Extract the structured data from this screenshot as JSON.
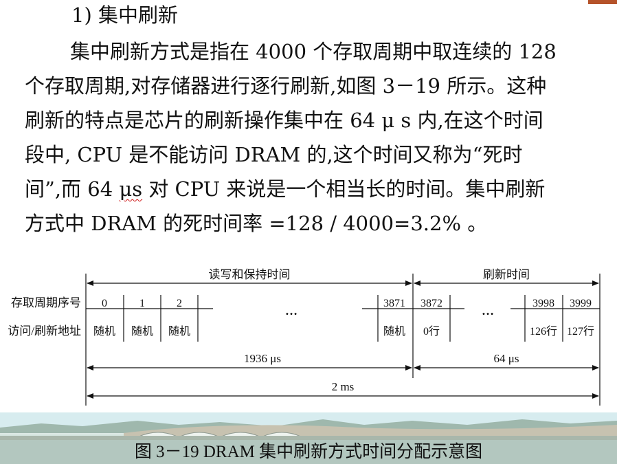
{
  "heading": "1) 集中刷新",
  "paragraph": {
    "l1": "集中刷新方式是指在 4000 个存取周期中取连续的 128",
    "l2": "个存取周期,对存储器进行逐行刷新,如图 3－19 所示。这种",
    "l3": "刷新的特点是芯片的刷新操作集中在 64 μ s 内,在这个时间",
    "l4": "段中, CPU 是不能访问 DRAM 的,这个时间又称为“死时",
    "l5_pre": "间”,而 64 ",
    "l5_us": "μs",
    "l5_post": " 对 CPU 来说是一个相当长的时间。集中刷新",
    "l6": "方式中 DRAM 的死时间率 =128 / 4000=3.2% 。"
  },
  "diagram": {
    "top_left_label": "读写和保持时间",
    "top_right_label": "刷新时间",
    "row1_label": "存取周期序号",
    "row2_label": "访问/刷新地址",
    "cycles": [
      "0",
      "1",
      "2",
      "3871",
      "3872",
      "3998",
      "3999"
    ],
    "addresses": [
      "随机",
      "随机",
      "随机",
      "随机",
      "0行",
      "126行",
      "127行"
    ],
    "ellipsis": "…",
    "bottom_left_label": "1936 μs",
    "bottom_right_label": "64 μs",
    "total_label": "2 ms"
  },
  "caption": "图 3－19 DRAM 集中刷新方式时间分配示意图",
  "colors": {
    "accent": "#b5532a",
    "underline": "#d01c1c"
  }
}
